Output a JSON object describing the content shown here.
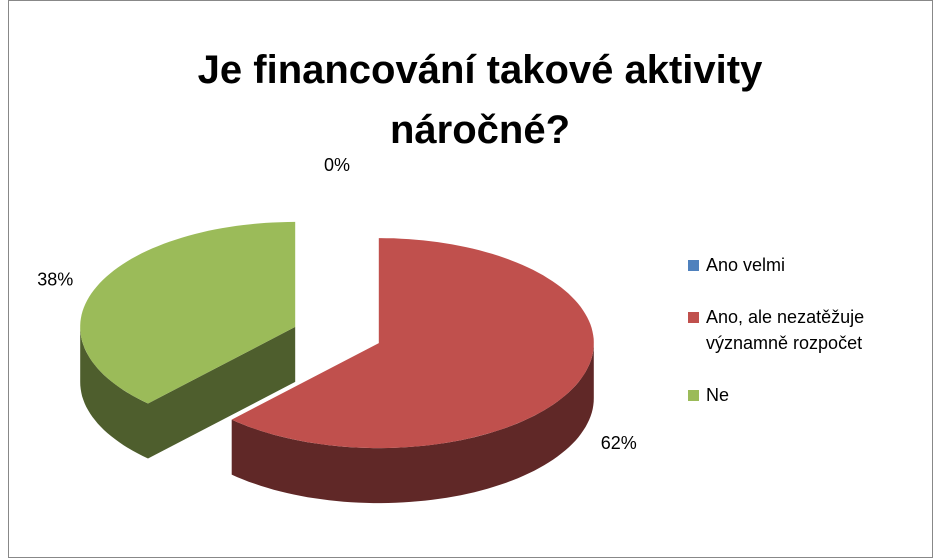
{
  "chart_data": {
    "type": "pie3d",
    "title": "Je financování takové aktivity náročné?",
    "categories": [
      "Ano velmi",
      "Ano, ale nezatěžuje významně rozpočet",
      "Ne"
    ],
    "values": [
      0,
      62,
      38
    ],
    "value_labels": [
      "0%",
      "62%",
      "38%"
    ],
    "colors": [
      "#4f81bd",
      "#c0504d",
      "#9bbb59"
    ],
    "legend": "right"
  }
}
